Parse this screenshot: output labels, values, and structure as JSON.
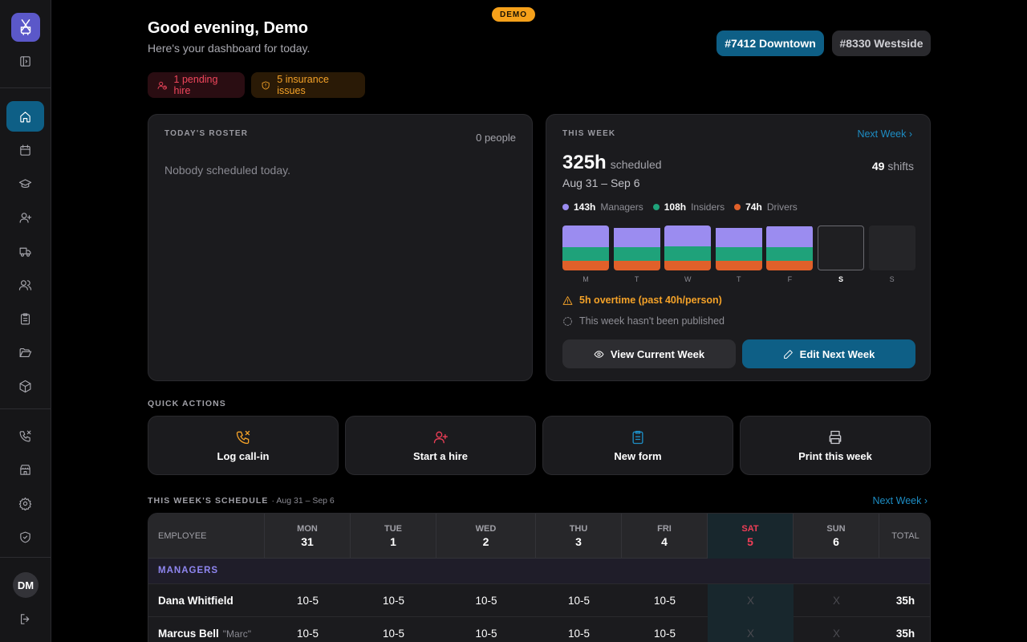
{
  "badge": "DEMO",
  "header": {
    "greeting": "Good evening, Demo",
    "subtitle": "Here's your dashboard for today."
  },
  "stores": [
    {
      "label": "#7412 Downtown",
      "active": true
    },
    {
      "label": "#8330 Westside",
      "active": false
    }
  ],
  "alerts": [
    {
      "label": "1 pending hire",
      "icon": "user-clock-icon",
      "color": "#f0465c"
    },
    {
      "label": "5 insurance issues",
      "icon": "shield-alert-icon",
      "color": "#f4a228"
    }
  ],
  "roster": {
    "title": "TODAY'S ROSTER",
    "count": "0 people",
    "empty": "Nobody scheduled today."
  },
  "this_week": {
    "title": "THIS WEEK",
    "next_link": "Next Week",
    "hours": "325h",
    "hours_unit": "scheduled",
    "date_range": "Aug 31 – Sep 6",
    "shifts_count": "49",
    "shifts_label": "shifts",
    "legend": [
      {
        "hours": "143h",
        "label": "Managers",
        "color": "#9b8cf0"
      },
      {
        "hours": "108h",
        "label": "Insiders",
        "color": "#1fa27a"
      },
      {
        "hours": "74h",
        "label": "Drivers",
        "color": "#e0602a"
      }
    ],
    "days": [
      {
        "label": "M",
        "managers": 25,
        "insiders": 16,
        "drivers": 11,
        "today": false
      },
      {
        "label": "T",
        "managers": 22,
        "insiders": 16,
        "drivers": 11,
        "today": false
      },
      {
        "label": "W",
        "managers": 24,
        "insiders": 17,
        "drivers": 11,
        "today": false
      },
      {
        "label": "T",
        "managers": 22,
        "insiders": 16,
        "drivers": 11,
        "today": false
      },
      {
        "label": "F",
        "managers": 24,
        "insiders": 16,
        "drivers": 11,
        "today": false
      },
      {
        "label": "S",
        "managers": 0,
        "insiders": 0,
        "drivers": 0,
        "today": true
      },
      {
        "label": "S",
        "managers": 0,
        "insiders": 0,
        "drivers": 0,
        "today": false
      }
    ],
    "overtime": "5h overtime (past 40h/person)",
    "unpublished": "This week hasn't been published",
    "view_btn": "View Current Week",
    "edit_btn": "Edit Next Week"
  },
  "quick_actions": {
    "title": "QUICK ACTIONS",
    "items": [
      {
        "label": "Log call-in",
        "icon": "phone-x-icon",
        "color": "#f4a228"
      },
      {
        "label": "Start a hire",
        "icon": "user-plus-icon",
        "color": "#ef3e57"
      },
      {
        "label": "New form",
        "icon": "clipboard-icon",
        "color": "#1d8dc4"
      },
      {
        "label": "Print this week",
        "icon": "printer-icon",
        "color": "#c9c9cf"
      }
    ]
  },
  "schedule": {
    "title": "THIS WEEK'S SCHEDULE",
    "range": "· Aug 31 – Sep 6",
    "next_link": "Next Week",
    "employee_col": "EMPLOYEE",
    "total_col": "TOTAL",
    "days": [
      {
        "name": "MON",
        "num": "31"
      },
      {
        "name": "TUE",
        "num": "1"
      },
      {
        "name": "WED",
        "num": "2"
      },
      {
        "name": "THU",
        "num": "3"
      },
      {
        "name": "FRI",
        "num": "4"
      },
      {
        "name": "SAT",
        "num": "5"
      },
      {
        "name": "SUN",
        "num": "6"
      }
    ],
    "group": "MANAGERS",
    "rows": [
      {
        "name": "Dana Whitfield",
        "nick": "",
        "cells": [
          "10-5",
          "10-5",
          "10-5",
          "10-5",
          "10-5",
          "X",
          "X"
        ],
        "total": "35h"
      },
      {
        "name": "Marcus Bell",
        "nick": "\"Marc\"",
        "cells": [
          "10-5",
          "10-5",
          "10-5",
          "10-5",
          "10-5",
          "X",
          "X"
        ],
        "total": "35h"
      }
    ]
  },
  "user": {
    "initials": "DM"
  }
}
